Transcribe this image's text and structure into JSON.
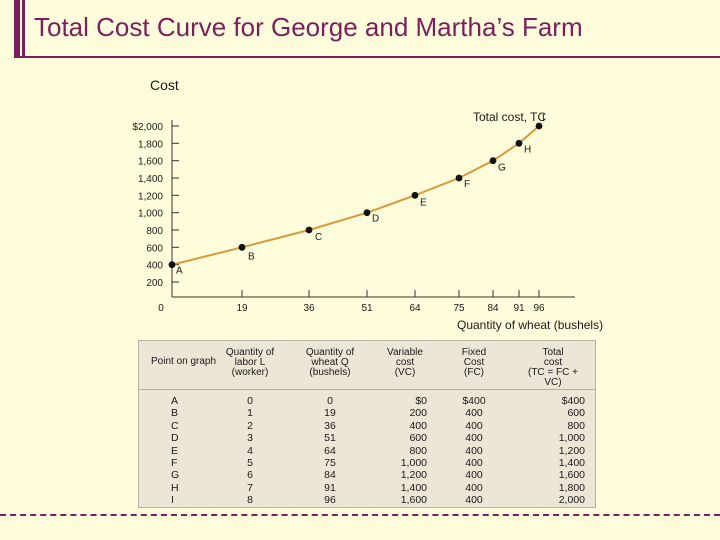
{
  "page": {
    "title": "Total Cost Curve for George and Martha’s Farm"
  },
  "colors": {
    "accent": "#7a1f5c",
    "background": "#fffcdc",
    "table_bg": "#ece6d6",
    "curve": "#d99a3a"
  },
  "chart_data": {
    "type": "line",
    "title": "",
    "xlabel": "Quantity of wheat (bushels)",
    "ylabel": "Cost",
    "curve_label": "Total cost, TC",
    "xlim": [
      0,
      100
    ],
    "ylim": [
      0,
      2000
    ],
    "x_ticks": [
      "0",
      "19",
      "36",
      "51",
      "64",
      "75",
      "84",
      "91",
      "96"
    ],
    "x_tick_values": [
      0,
      19,
      36,
      51,
      64,
      75,
      84,
      91,
      96
    ],
    "y_ticks": [
      "$2,000",
      "1,800",
      "1,600",
      "1,400",
      "1,200",
      "1,000",
      "800",
      "600",
      "400",
      "200"
    ],
    "y_tick_values": [
      2000,
      1800,
      1600,
      1400,
      1200,
      1000,
      800,
      600,
      400,
      200
    ],
    "zero_label": "0",
    "series": [
      {
        "name": "Total cost, TC",
        "points": [
          {
            "label": "A",
            "x": 0,
            "y": 400
          },
          {
            "label": "B",
            "x": 19,
            "y": 600
          },
          {
            "label": "C",
            "x": 36,
            "y": 800
          },
          {
            "label": "D",
            "x": 51,
            "y": 1000
          },
          {
            "label": "E",
            "x": 64,
            "y": 1200
          },
          {
            "label": "F",
            "x": 75,
            "y": 1400
          },
          {
            "label": "G",
            "x": 84,
            "y": 1600
          },
          {
            "label": "H",
            "x": 91,
            "y": 1800
          },
          {
            "label": "I",
            "x": 96,
            "y": 2000
          }
        ]
      }
    ],
    "grid": false
  },
  "table": {
    "headers": {
      "point": "Point on graph",
      "labor": [
        "Quantity of",
        "labor L",
        "(worker)"
      ],
      "wheat": [
        "Quantity of",
        "wheat Q",
        "(bushels)"
      ],
      "vc": [
        "Variable",
        "cost",
        "(VC)"
      ],
      "fc": [
        "Fixed",
        "Cost",
        "(FC)"
      ],
      "tc": [
        "Total",
        "cost",
        "(TC = FC +",
        "VC)"
      ]
    },
    "columns": {
      "point": [
        "A",
        "B",
        "C",
        "D",
        "E",
        "F",
        "G",
        "H",
        "I"
      ],
      "labor": [
        "0",
        "1",
        "2",
        "3",
        "4",
        "5",
        "6",
        "7",
        "8"
      ],
      "wheat": [
        "0",
        "19",
        "36",
        "51",
        "64",
        "75",
        "84",
        "91",
        "96"
      ],
      "vc": [
        "$0",
        "200",
        "400",
        "600",
        "800",
        "1,000",
        "1,200",
        "1,400",
        "1,600"
      ],
      "fc": [
        "$400",
        "400",
        "400",
        "400",
        "400",
        "400",
        "400",
        "400",
        "400"
      ],
      "tc": [
        "$400",
        "600",
        "800",
        "1,000",
        "1,200",
        "1,400",
        "1,600",
        "1,800",
        "2,000"
      ]
    }
  }
}
